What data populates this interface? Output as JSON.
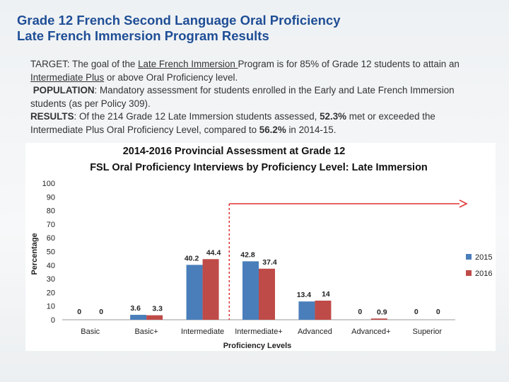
{
  "header": {
    "title_line1": "Grade 12 French Second Language Oral Proficiency",
    "title_line2": "Late French Immersion Program Results"
  },
  "body": {
    "target_label": "TARGET",
    "target_pre": ": The goal of the ",
    "target_link1": "Late French Immersion ",
    "target_mid": "Program is for 85% of Grade 12 students to attain an ",
    "target_link2": "Intermediate Plus",
    "target_post": " or above Oral Proficiency level.",
    "population_label": "POPULATION",
    "population_text": ": Mandatory assessment for students enrolled in the Early and Late French Immersion students (as per Policy 309).",
    "results_label": "RESULTS",
    "results_pre": ": Of the 214 Grade 12 Late Immersion students assessed, ",
    "results_val1": "52.3%",
    "results_mid": "  met or exceeded the Intermediate Plus Oral Proficiency Level, compared to ",
    "results_val2": "56.2%",
    "results_post": "  in 2014-15."
  },
  "chart_data": {
    "type": "bar",
    "title": "2014-2016 Provincial Assessment at Grade 12",
    "subtitle": "FSL Oral Proficiency Interviews by Proficiency Level: Late Immersion",
    "xlabel": "Proficiency Levels",
    "ylabel": "Percentage",
    "ylim": [
      0,
      100
    ],
    "yticks": [
      0,
      10,
      20,
      30,
      40,
      50,
      60,
      70,
      80,
      90,
      100
    ],
    "categories": [
      "Basic",
      "Basic+",
      "Intermediate",
      "Intermediate+",
      "Advanced",
      "Advanced+",
      "Superior"
    ],
    "series": [
      {
        "name": "2015",
        "color": "#4a7ebb",
        "values": [
          0,
          3.6,
          40.2,
          42.8,
          13.4,
          0,
          0
        ]
      },
      {
        "name": "2016",
        "color": "#be4b48",
        "values": [
          0,
          3.3,
          44.4,
          37.4,
          14,
          0.9,
          0
        ]
      }
    ],
    "grid": false,
    "legend": "right",
    "annotation": {
      "type": "target-arrow",
      "value": 85,
      "from_category": "Intermediate+",
      "color": "#e03030"
    }
  }
}
